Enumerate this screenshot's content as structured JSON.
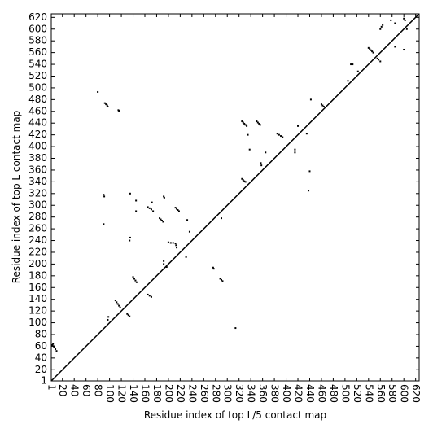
{
  "chart_data": {
    "type": "scatter",
    "x_label": "Residue index of top L/5 contact map",
    "y_label": "Residue index of top L contact map",
    "xlim": [
      1,
      626
    ],
    "ylim": [
      1,
      626
    ],
    "xticks": [
      1,
      20,
      40,
      60,
      80,
      100,
      120,
      140,
      160,
      180,
      200,
      220,
      240,
      260,
      280,
      300,
      320,
      340,
      360,
      380,
      400,
      420,
      440,
      460,
      480,
      500,
      520,
      540,
      560,
      580,
      600,
      620
    ],
    "yticks": [
      1,
      20,
      40,
      60,
      80,
      100,
      120,
      140,
      160,
      180,
      200,
      220,
      240,
      260,
      280,
      300,
      320,
      340,
      360,
      380,
      400,
      420,
      440,
      460,
      480,
      500,
      520,
      540,
      560,
      580,
      600,
      620
    ],
    "diagonal": true,
    "series": [
      {
        "color": "#000000",
        "x": [
          3,
          5,
          6,
          8,
          10,
          4,
          92,
          94,
          96,
          97,
          115,
          116,
          80,
          90,
          91,
          90,
          98,
          97,
          110,
          112,
          114,
          116,
          118,
          130,
          132,
          134,
          135,
          134,
          140,
          142,
          144,
          146,
          135,
          145,
          145,
          165,
          168,
          171,
          174,
          165,
          168,
          171,
          172,
          185,
          187,
          189,
          191,
          192,
          193,
          192,
          192,
          197,
          200,
          204,
          208,
          212,
          212,
          214,
          216,
          218,
          213,
          214,
          230,
          232,
          236,
          276,
          277,
          288,
          290,
          292,
          290,
          314,
          325,
          327,
          329,
          331,
          333,
          325,
          327,
          329,
          331,
          335,
          338,
          350,
          352,
          354,
          356,
          357,
          358,
          365,
          385,
          388,
          391,
          394,
          415,
          415,
          420,
          435,
          438,
          440,
          442,
          460,
          462,
          464,
          510,
          513,
          540,
          542,
          544,
          546,
          548,
          555,
          557,
          560,
          560,
          562,
          564,
          578,
          585,
          600,
          602,
          605,
          585,
          600,
          522,
          505
        ],
        "y": [
          62,
          60,
          58,
          55,
          52,
          64,
          474,
          472,
          470,
          468,
          462,
          461,
          493,
          318,
          315,
          268,
          110,
          105,
          138,
          135,
          132,
          129,
          126,
          115,
          113,
          111,
          245,
          240,
          178,
          175,
          172,
          169,
          320,
          290,
          308,
          297,
          295,
          293,
          290,
          148,
          146,
          144,
          305,
          278,
          276,
          274,
          272,
          315,
          313,
          205,
          200,
          195,
          237,
          236,
          236,
          235,
          296,
          294,
          292,
          290,
          232,
          228,
          212,
          275,
          255,
          194,
          192,
          175,
          173,
          171,
          278,
          91,
          443,
          441,
          439,
          437,
          435,
          345,
          343,
          341,
          340,
          420,
          395,
          443,
          441,
          439,
          437,
          372,
          368,
          390,
          422,
          420,
          418,
          416,
          395,
          390,
          435,
          422,
          325,
          358,
          480,
          472,
          470,
          468,
          540,
          540,
          568,
          566,
          564,
          562,
          560,
          550,
          548,
          545,
          600,
          604,
          607,
          615,
          610,
          618,
          615,
          600,
          570,
          565,
          528,
          512
        ]
      }
    ]
  }
}
